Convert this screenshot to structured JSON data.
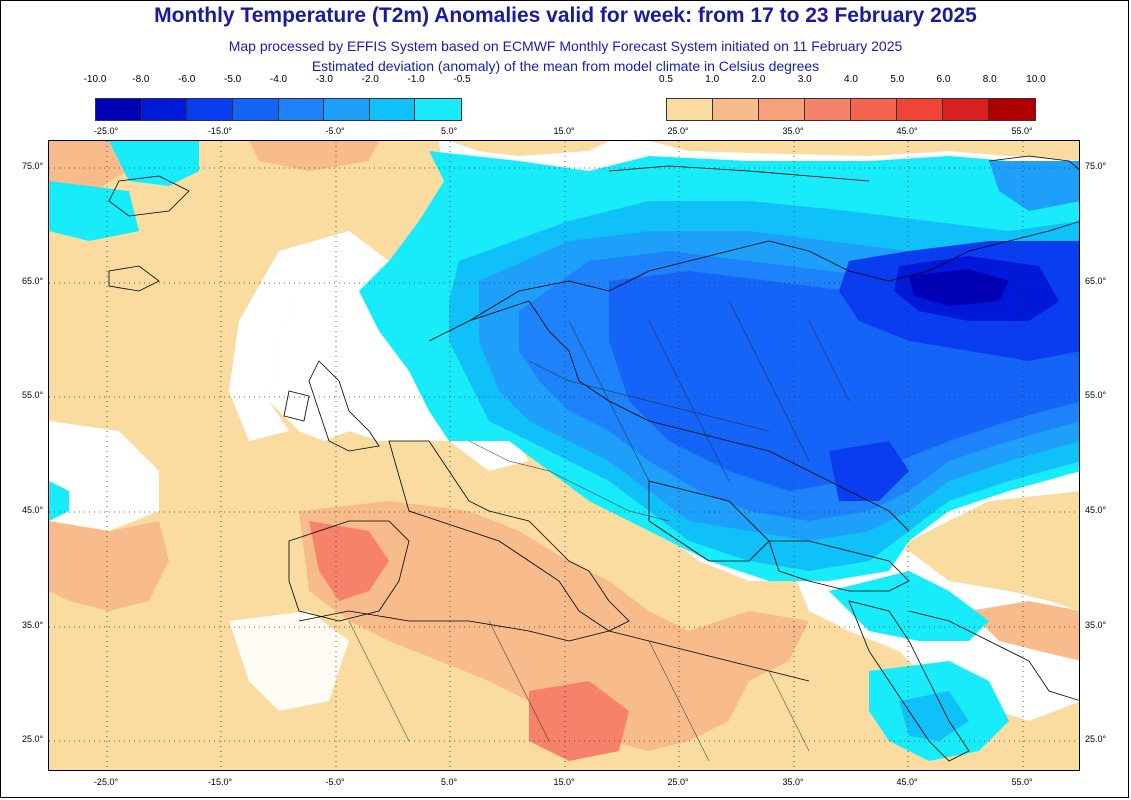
{
  "title": "Monthly Temperature (T2m) Anomalies valid for week: from 17 to 23 February 2025",
  "subtitle1": "Map processed by EFFIS System based on ECMWF Monthly Forecast System initiated on 11 February 2025",
  "subtitle2": "Estimated deviation (anomaly) of the mean from model climate in Celsius degrees",
  "legend_cold": {
    "ticks": [
      "-10.0",
      "-8.0",
      "-6.0",
      "-5.0",
      "-4.0",
      "-3.0",
      "-2.0",
      "-1.0",
      "-0.5"
    ],
    "colors": [
      "#0000b4",
      "#0018d8",
      "#0a3cf0",
      "#1464f8",
      "#1e82fa",
      "#1ea0fa",
      "#10c0f8",
      "#18ecfa"
    ]
  },
  "legend_warm": {
    "ticks": [
      "0.5",
      "1.0",
      "2.0",
      "3.0",
      "4.0",
      "5.0",
      "6.0",
      "8.0",
      "10.0"
    ],
    "colors": [
      "#fadca0",
      "#f8bc8c",
      "#f8a07a",
      "#f6826a",
      "#f4644e",
      "#f04434",
      "#d8201e",
      "#b00000"
    ]
  },
  "lon_labels": [
    "-25.0°",
    "-15.0°",
    "-5.0°",
    "5.0°",
    "15.0°",
    "25.0°",
    "35.0°",
    "45.0°",
    "55.0°"
  ],
  "lat_labels": [
    "75.0°",
    "65.0°",
    "55.0°",
    "45.0°",
    "35.0°",
    "25.0°"
  ],
  "map_colors": {
    "warm_light": "#fadca0",
    "warm_mid": "#f8bc8c",
    "warm_strong": "#f6826a",
    "cold_cyan": "#18ecfa",
    "cold_1": "#10c0f8",
    "cold_2": "#1ea0fa",
    "cold_3": "#1e82fa",
    "cold_4": "#1464f8",
    "cold_5": "#0a3cf0",
    "cold_6": "#0018d8",
    "cold_7": "#0000b4"
  }
}
